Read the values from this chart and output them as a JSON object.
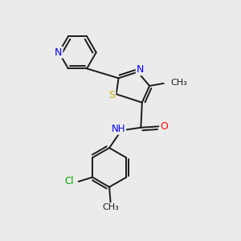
{
  "bg_color": "#ebebeb",
  "bond_color": "#1a1a1a",
  "atom_colors": {
    "N": "#0000ff",
    "S": "#ccaa00",
    "O": "#ff0000",
    "Cl": "#00aa00",
    "C": "#1a1a1a",
    "H": "#555555"
  },
  "figsize": [
    3.0,
    3.0
  ],
  "dpi": 100,
  "xlim": [
    0,
    10
  ],
  "ylim": [
    0,
    10
  ]
}
